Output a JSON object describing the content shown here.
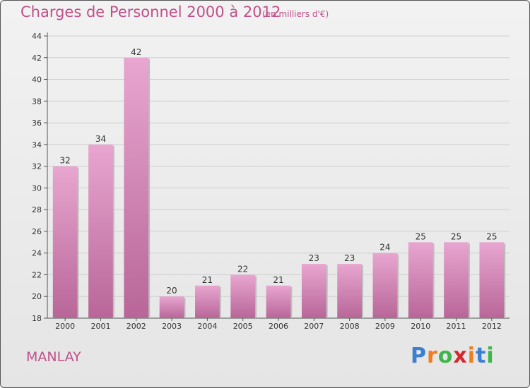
{
  "title": "Charges de Personnel 2000 à 2012",
  "subtitle": "(en milliers d'€)",
  "commune": "MANLAY",
  "logo": {
    "letters": [
      "P",
      "r",
      "o",
      "x",
      "i",
      "t",
      "i"
    ],
    "colors": [
      "#3a7fd0",
      "#f07c1f",
      "#3cb54a",
      "#d8262c",
      "#f07c1f",
      "#3a7fd0",
      "#3cb54a"
    ]
  },
  "colors": {
    "accent": "#c0508a",
    "bar_top": "#e8a6d0",
    "bar_bottom": "#b86698"
  },
  "chart_data": {
    "type": "bar",
    "categories": [
      "2000",
      "2001",
      "2002",
      "2003",
      "2004",
      "2005",
      "2006",
      "2007",
      "2008",
      "2009",
      "2010",
      "2011",
      "2012"
    ],
    "values": [
      32,
      34,
      42,
      20,
      21,
      22,
      21,
      23,
      23,
      24,
      25,
      25,
      25
    ],
    "ylim": [
      18,
      44
    ],
    "yticks": [
      18,
      20,
      22,
      24,
      26,
      28,
      30,
      32,
      34,
      36,
      38,
      40,
      42,
      44
    ],
    "grid": true
  }
}
